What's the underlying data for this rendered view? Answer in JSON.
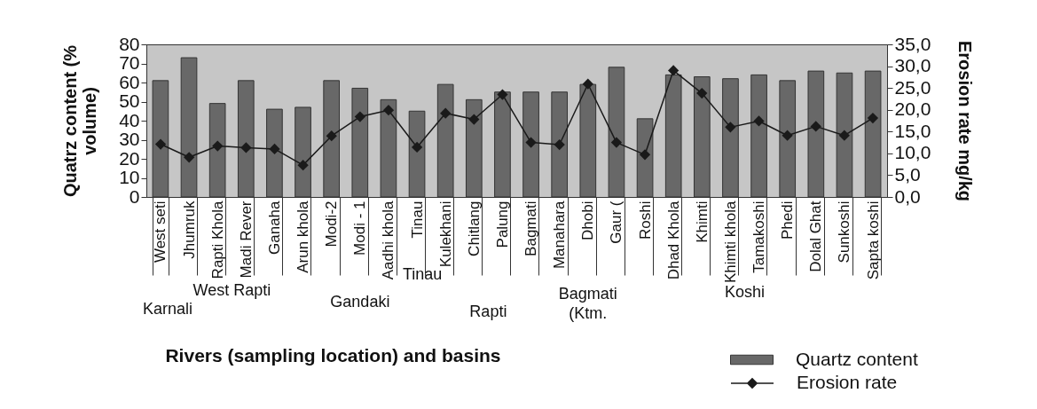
{
  "chart_data": {
    "type": "bar",
    "categories": [
      "West seti",
      "Jhumruk",
      "Rapti Khola",
      "Madi Rever",
      "Ganaha",
      "Arun khola",
      "Modi-2",
      "Modi - 1",
      "Aadhi khola",
      "Tinau",
      "Kulekhani",
      "Chitlang",
      "Palung",
      "Bagmati",
      "Manahara",
      "Dhobi",
      "Gaur (",
      "Roshi",
      "Dhad Khola",
      "Khimti",
      "Khimti khola",
      "Tamakoshi",
      "Phedi",
      "Dolal Ghat",
      "Sunkoshi",
      "Sapta koshi"
    ],
    "series": [
      {
        "name": "Quartz content",
        "color": "#686868",
        "values": [
          61,
          73,
          49,
          61,
          46,
          47,
          61,
          57,
          51,
          45,
          59,
          51,
          55,
          55,
          55,
          59,
          68,
          41,
          64,
          63,
          62,
          64,
          61,
          66,
          65,
          66
        ]
      },
      {
        "name": "Erosion rate",
        "type": "line",
        "axis": "y2",
        "color": "#1a1a1a",
        "values": [
          12.1,
          9.1,
          11.7,
          11.3,
          11.0,
          7.3,
          14.0,
          18.4,
          19.9,
          11.4,
          19.2,
          17.8,
          23.5,
          12.5,
          12.0,
          25.9,
          12.5,
          9.7,
          29.0,
          23.8,
          16.0,
          17.4,
          14.1,
          16.2,
          14.1,
          18.1
        ]
      }
    ],
    "xlabel": "Rivers (sampling location) and basins",
    "ylabel": "Quatrz content (% volume)",
    "y2label": "Erosion rate mg/kg",
    "ylim": [
      0,
      80
    ],
    "yticks": [
      0,
      10,
      20,
      30,
      40,
      50,
      60,
      70,
      80
    ],
    "y2lim": [
      0,
      35
    ],
    "y2ticks": [
      {
        "value": 0,
        "label": "0,0"
      },
      {
        "value": 5,
        "label": "5,0"
      },
      {
        "value": 10,
        "label": "10,0"
      },
      {
        "value": 15,
        "label": "15,0"
      },
      {
        "value": 20,
        "label": "20,0"
      },
      {
        "value": 25,
        "label": "25,0"
      },
      {
        "value": 30,
        "label": "30,0"
      },
      {
        "value": 35,
        "label": "35,0"
      }
    ],
    "annotations": [
      "Karnali",
      "West Rapti",
      "Gandaki",
      "Tinau",
      "Rapti",
      "Bagmati (Ktm.",
      "Koshi"
    ],
    "marker": "diamond",
    "line_style": "solid",
    "legend": "bottom right"
  }
}
